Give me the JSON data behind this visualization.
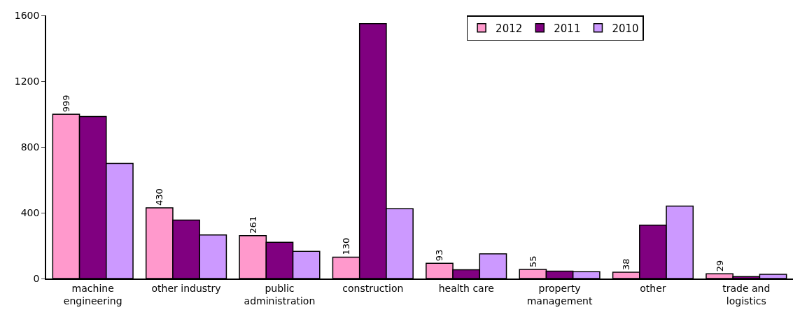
{
  "chart_data": {
    "type": "bar",
    "categories": [
      "machine engineering",
      "other industry",
      "public administration",
      "construction",
      "health care",
      "property management",
      "other",
      "trade and logistics"
    ],
    "series": [
      {
        "name": "2012",
        "color": "#ff99cc",
        "values": [
          999,
          430,
          261,
          130,
          93,
          55,
          38,
          29
        ],
        "value_labels": [
          "999",
          "430",
          "261",
          "130",
          "93",
          "55",
          "38",
          "29"
        ]
      },
      {
        "name": "2011",
        "color": "#800080",
        "values": [
          985,
          355,
          220,
          1550,
          53,
          45,
          324,
          12
        ]
      },
      {
        "name": "2010",
        "color": "#cc99ff",
        "values": [
          700,
          265,
          165,
          425,
          150,
          42,
          440,
          26
        ]
      }
    ],
    "ylim": [
      0,
      1600
    ],
    "yticks": [
      0,
      400,
      800,
      1200,
      1600
    ],
    "legend": "top right"
  }
}
